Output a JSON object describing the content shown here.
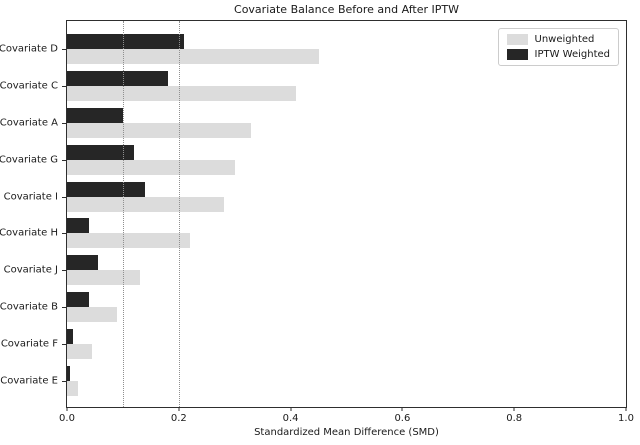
{
  "chart_data": {
    "type": "bar",
    "orientation": "horizontal",
    "title": "Covariate Balance Before and After IPTW",
    "xlabel": "Standardized Mean Difference (SMD)",
    "categories": [
      "Covariate D",
      "Covariate C",
      "Covariate A",
      "Covariate G",
      "Covariate I",
      "Covariate H",
      "Covariate J",
      "Covariate B",
      "Covariate F",
      "Covariate E"
    ],
    "series": [
      {
        "name": "Unweighted",
        "color": "#dcdcdc",
        "values": [
          0.45,
          0.41,
          0.33,
          0.3,
          0.28,
          0.22,
          0.13,
          0.09,
          0.045,
          0.02
        ]
      },
      {
        "name": "IPTW Weighted",
        "color": "#262626",
        "values": [
          0.21,
          0.18,
          0.1,
          0.12,
          0.14,
          0.04,
          0.055,
          0.04,
          0.01,
          0.005
        ]
      }
    ],
    "xlim": [
      0.0,
      1.0
    ],
    "xticks": [
      {
        "value": 0.0,
        "label": "0.0"
      },
      {
        "value": 0.2,
        "label": "0.2"
      },
      {
        "value": 0.4,
        "label": "0.4"
      },
      {
        "value": 0.6,
        "label": "0.6"
      },
      {
        "value": 0.8,
        "label": "0.8"
      },
      {
        "value": 1.0,
        "label": "1.0"
      }
    ],
    "reference_lines": [
      {
        "value": 0.1,
        "style": "dotted",
        "color": "#8f8f8f"
      },
      {
        "value": 0.2,
        "style": "dotted",
        "color": "#8f8f8f"
      }
    ],
    "legend": {
      "position": "upper right",
      "entries": [
        "Unweighted",
        "IPTW Weighted"
      ]
    },
    "grid": false
  },
  "colors": {
    "background": "#ffffff",
    "spine": "#2e2e2e",
    "text": "#1a1a1a"
  }
}
